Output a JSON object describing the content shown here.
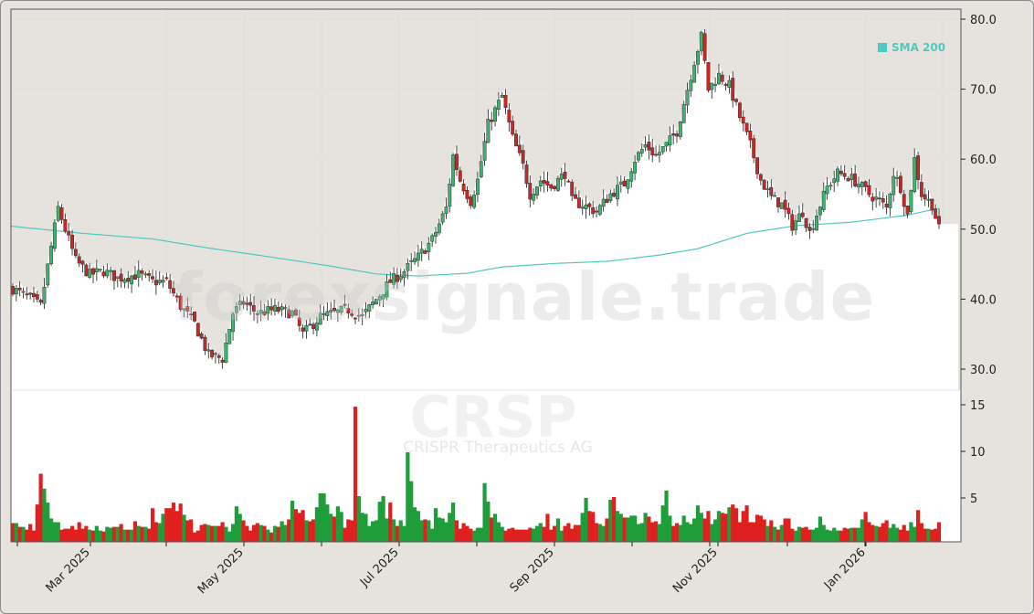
{
  "chart": {
    "ticker": "CRSP",
    "company": "CRISPR Therapeutics AG",
    "watermark": "forexsignale.trade",
    "legend_label": "SMA 200",
    "colors": {
      "background": "#e6e3de",
      "plot_bg": "#ffffff",
      "up": "#1e9e3a",
      "up_candle": "#3cb46e",
      "down": "#e0201e",
      "down_candle": "#c62828",
      "sma": "#4fc9bf",
      "grid": "#dddddd"
    }
  },
  "chart_data": {
    "type": "candlestick",
    "title": "CRSP - CRISPR Therapeutics AG",
    "xlabel": "",
    "ylabel": "",
    "price_axis": {
      "ticks": [
        30.0,
        40.0,
        50.0,
        60.0,
        70.0,
        80.0
      ],
      "labels": [
        "30.0",
        "40.0",
        "50.0",
        "60.0",
        "70.0",
        "80.0"
      ],
      "ylim": [
        27.5,
        81.5
      ],
      "position": "right"
    },
    "volume_axis": {
      "ticks": [
        5,
        10,
        15
      ],
      "labels": [
        "5",
        "10",
        "15"
      ],
      "ylim": [
        0,
        15.5
      ],
      "unit": "millions (approx.)"
    },
    "x_ticks": [
      "Mar 2025",
      "May 2025",
      "Jul 2025",
      "Sep 2025",
      "Nov 2025",
      "Jan 2026"
    ],
    "date_range": [
      "Feb 2025",
      "Jan 2026"
    ],
    "legend": [
      {
        "name": "SMA 200",
        "color": "#4fc9bf",
        "position": "top-right"
      }
    ],
    "grid": true,
    "price_keypoints": [
      [
        0,
        41.5
      ],
      [
        5,
        40.0
      ],
      [
        8,
        39.0
      ],
      [
        11,
        47.5
      ],
      [
        13,
        53.0
      ],
      [
        15,
        50.0
      ],
      [
        18,
        45.5
      ],
      [
        22,
        43.5
      ],
      [
        26,
        44.0
      ],
      [
        30,
        43.0
      ],
      [
        36,
        43.5
      ],
      [
        40,
        42.5
      ],
      [
        44,
        42.5
      ],
      [
        48,
        39.0
      ],
      [
        52,
        36.5
      ],
      [
        56,
        32.0
      ],
      [
        60,
        31.5
      ],
      [
        63,
        38.0
      ],
      [
        66,
        39.5
      ],
      [
        70,
        38.0
      ],
      [
        75,
        38.5
      ],
      [
        80,
        38.0
      ],
      [
        83,
        35.0
      ],
      [
        88,
        37.5
      ],
      [
        92,
        38.0
      ],
      [
        96,
        38.5
      ],
      [
        100,
        37.5
      ],
      [
        104,
        40.0
      ],
      [
        108,
        42.5
      ],
      [
        112,
        44.0
      ],
      [
        116,
        46.0
      ],
      [
        120,
        48.5
      ],
      [
        124,
        53.0
      ],
      [
        126,
        60.5
      ],
      [
        128,
        57.0
      ],
      [
        131,
        54.0
      ],
      [
        133,
        57.0
      ],
      [
        136,
        65.0
      ],
      [
        138,
        67.0
      ],
      [
        140,
        69.0
      ],
      [
        143,
        63.0
      ],
      [
        146,
        59.0
      ],
      [
        148,
        55.0
      ],
      [
        151,
        57.0
      ],
      [
        154,
        56.0
      ],
      [
        158,
        58.0
      ],
      [
        160,
        54.0
      ],
      [
        163,
        53.5
      ],
      [
        167,
        52.5
      ],
      [
        171,
        55.0
      ],
      [
        175,
        56.5
      ],
      [
        178,
        60.0
      ],
      [
        181,
        62.0
      ],
      [
        184,
        60.5
      ],
      [
        187,
        62.0
      ],
      [
        190,
        64.0
      ],
      [
        193,
        70.0
      ],
      [
        195,
        74.0
      ],
      [
        197,
        77.5
      ],
      [
        199,
        70.0
      ],
      [
        202,
        72.0
      ],
      [
        205,
        70.5
      ],
      [
        208,
        66.0
      ],
      [
        211,
        62.0
      ],
      [
        214,
        57.0
      ],
      [
        217,
        54.5
      ],
      [
        220,
        53.5
      ],
      [
        223,
        50.5
      ],
      [
        226,
        52.5
      ],
      [
        228,
        49.5
      ],
      [
        231,
        53.5
      ],
      [
        233,
        56.0
      ],
      [
        236,
        58.0
      ],
      [
        239,
        57.5
      ],
      [
        242,
        56.5
      ],
      [
        245,
        55.0
      ],
      [
        248,
        54.0
      ],
      [
        250,
        53.0
      ],
      [
        252,
        58.0
      ],
      [
        254,
        56.0
      ],
      [
        256,
        52.0
      ],
      [
        258,
        60.0
      ],
      [
        260,
        55.0
      ],
      [
        263,
        53.5
      ],
      [
        265,
        50.0
      ]
    ],
    "sma200_keypoints": [
      [
        0,
        50.4
      ],
      [
        20,
        49.4
      ],
      [
        40,
        48.6
      ],
      [
        56,
        47.3
      ],
      [
        70,
        46.3
      ],
      [
        90,
        44.8
      ],
      [
        104,
        43.6
      ],
      [
        116,
        43.3
      ],
      [
        130,
        43.7
      ],
      [
        140,
        44.6
      ],
      [
        155,
        45.1
      ],
      [
        170,
        45.4
      ],
      [
        185,
        46.3
      ],
      [
        196,
        47.2
      ],
      [
        210,
        49.4
      ],
      [
        224,
        50.5
      ],
      [
        240,
        51.0
      ],
      [
        256,
        52.0
      ],
      [
        265,
        53.0
      ]
    ],
    "volume_profile": [
      2.3,
      1.9,
      1.9,
      1.6,
      2.2,
      1.5,
      4.3,
      7.6,
      6.0,
      4.5,
      2.8,
      2.4,
      2.4,
      1.6,
      1.7,
      1.7,
      2.0,
      1.6,
      2.4,
      1.7,
      2.0,
      1.6,
      1.5,
      2.0,
      1.5,
      1.4,
      1.9,
      1.8,
      1.9,
      1.9,
      2.2,
      1.6,
      1.6,
      1.6,
      2.5,
      2.0,
      1.9,
      1.9,
      1.7,
      3.9,
      2.4,
      2.3,
      3.3,
      3.9,
      4.5,
      3.6,
      4.4,
      3.2,
      2.6,
      2.7,
      1.3,
      1.5,
      2.1,
      2.2,
      2.1,
      2.0,
      2.0,
      2.0,
      2.4,
      1.9,
      1.4,
      2.2,
      4.1,
      3.3,
      2.6,
      2.0,
      1.5,
      2.1,
      2.3,
      2.1,
      2.0,
      1.6,
      1.3,
      2.0,
      1.9,
      2.5,
      2.1,
      2.7,
      4.7,
      3.8,
      3.4,
      3.7,
      2.6,
      2.5,
      2.7,
      4.0,
      5.5,
      4.3,
      3.3,
      3.0,
      4.1,
      3.5,
      1.8,
      2.7,
      2.6,
      14.8,
      5.2,
      3.4,
      3.3,
      2.0,
      2.5,
      2.6,
      4.6,
      5.2,
      2.8,
      4.5,
      2.7,
      2.0,
      2.6,
      2.0,
      9.9,
      6.8,
      4.0,
      3.6,
      2.6,
      2.7,
      2.6,
      1.7,
      3.9,
      2.9,
      2.8,
      2.4,
      3.4,
      4.5,
      2.6,
      1.7,
      2.3,
      2.0,
      1.7,
      1.5,
      1.8,
      6.6,
      4.6,
      2.9,
      3.3,
      2.4,
      1.9,
      1.5,
      1.7,
      1.8,
      1.6,
      1.6,
      1.6,
      1.6,
      1.8,
      1.7,
      2.0,
      2.3,
      1.9,
      3.3,
      1.6,
      2.0,
      2.8,
      1.5,
      2.0,
      2.3,
      1.7,
      2.1,
      2.1,
      3.4,
      5.0,
      3.6,
      3.5,
      2.3,
      2.2,
      2.0,
      2.8,
      4.8,
      5.1,
      3.6,
      3.3,
      2.9,
      2.9,
      3.1,
      2.2,
      2.3,
      3.4,
      3.0,
      2.4,
      2.5,
      2.2,
      4.2,
      5.8,
      3.1,
      2.0,
      2.3,
      2.1,
      3.1,
      2.4,
      2.2,
      2.8,
      4.2,
      3.4,
      2.8,
      3.6,
      2.2,
      2.7,
      3.6,
      3.4,
      3.3,
      4.0,
      4.3,
      3.9,
      2.4,
      3.6,
      4.2,
      2.4,
      2.4,
      3.2,
      3.1,
      2.7,
      2.0,
      2.6,
      1.9,
      1.6,
      2.1,
      2.8,
      1.7,
      1.5,
      1.9,
      1.8,
      1.9,
      1.6,
      1.6,
      1.8,
      3.0,
      2.1,
      1.6,
      1.5,
      1.8,
      1.5,
      1.5,
      1.8,
      1.7,
      1.8,
      1.8,
      1.8,
      2.7,
      3.5,
      2.4,
      2.1,
      2.0,
      1.9,
      2.3,
      2.6,
      1.8,
      2.2,
      1.8,
      1.6,
      2.1,
      1.5,
      2.4,
      1.9,
      3.7,
      2.3,
      1.7,
      1.7,
      1.6,
      1.7,
      2.4
    ],
    "volume_up_down": "matches candle direction (green=up, red=down)"
  }
}
